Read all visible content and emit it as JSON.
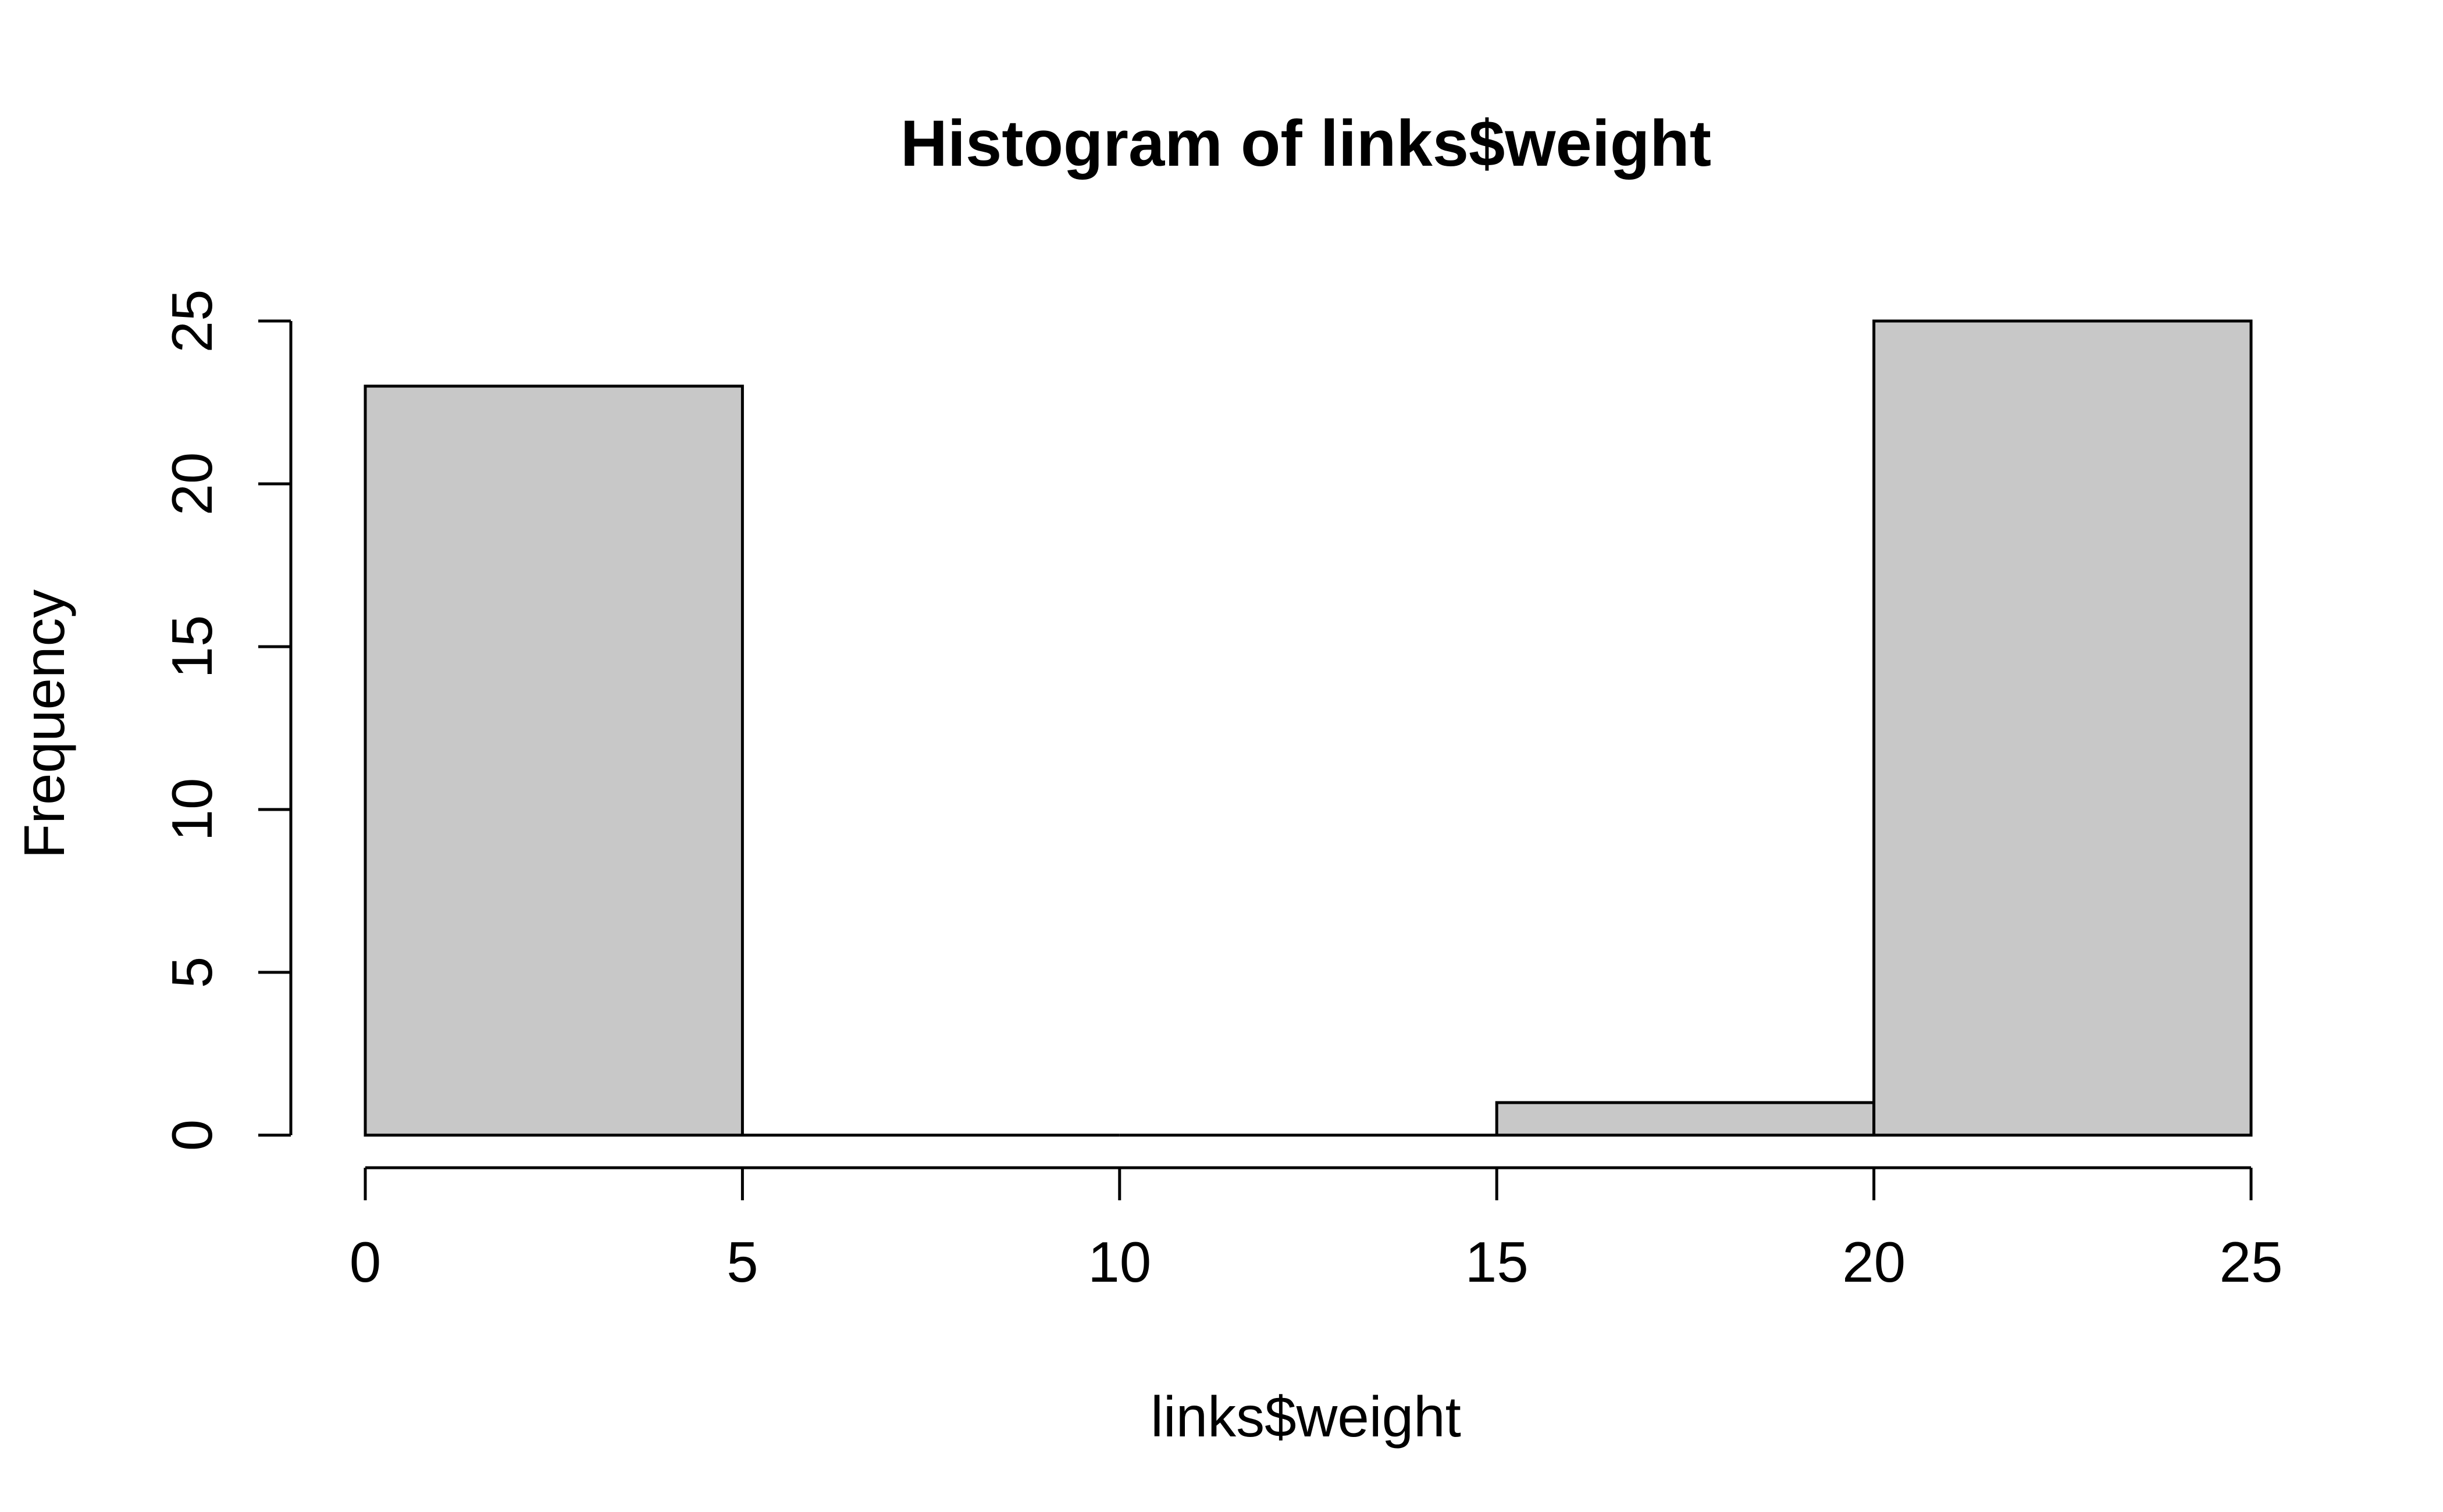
{
  "chart_data": {
    "type": "bar",
    "title": "Histogram of links$weight",
    "xlabel": "links$weight",
    "ylabel": "Frequency",
    "bins": [
      {
        "start": 0,
        "end": 5,
        "count": 23
      },
      {
        "start": 5,
        "end": 10,
        "count": 0
      },
      {
        "start": 10,
        "end": 15,
        "count": 0
      },
      {
        "start": 15,
        "end": 20,
        "count": 1
      },
      {
        "start": 20,
        "end": 25,
        "count": 25
      }
    ],
    "xlim": [
      0,
      25
    ],
    "ylim": [
      0,
      25
    ],
    "xticks": [
      0,
      5,
      10,
      15,
      20,
      25
    ],
    "yticks": [
      0,
      5,
      10,
      15,
      20,
      25
    ],
    "bar_color": "#c8c8c8",
    "grid": false
  }
}
